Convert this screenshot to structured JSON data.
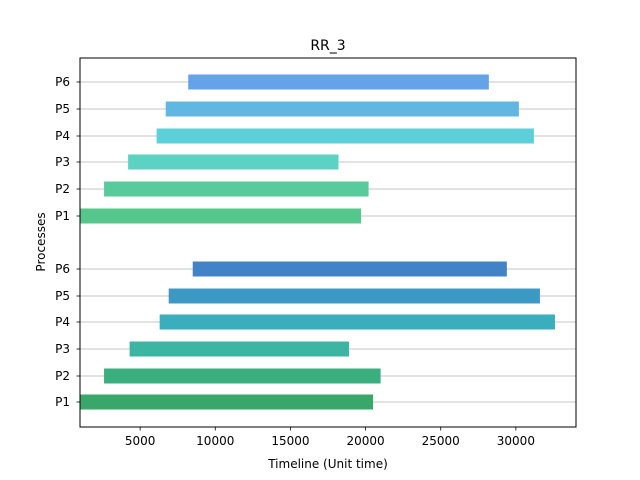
{
  "chart_data": {
    "type": "bar",
    "orientation": "horizontal-gantt",
    "title": "RR_3",
    "xlabel": "Timeline (Unit time)",
    "ylabel": "Processes",
    "xlim": [
      1000,
      34000
    ],
    "xticks": [
      5000,
      10000,
      15000,
      20000,
      25000,
      30000
    ],
    "xtick_labels": [
      "5000",
      "10000",
      "15000",
      "20000",
      "25000",
      "30000"
    ],
    "grid": "y",
    "legend": "none",
    "rows": [
      {
        "label": "P1",
        "start": 1000,
        "end": 20500,
        "color": "#3aa76a"
      },
      {
        "label": "P2",
        "start": 2600,
        "end": 21000,
        "color": "#3bae80"
      },
      {
        "label": "P3",
        "start": 4300,
        "end": 18900,
        "color": "#3cb5a2"
      },
      {
        "label": "P4",
        "start": 6300,
        "end": 32600,
        "color": "#3aaebd"
      },
      {
        "label": "P5",
        "start": 6900,
        "end": 31600,
        "color": "#3e98c4"
      },
      {
        "label": "P6",
        "start": 8500,
        "end": 29400,
        "color": "#4283c8"
      },
      {
        "label": "P1",
        "start": 1000,
        "end": 19700,
        "color": "#55c68c"
      },
      {
        "label": "P2",
        "start": 2600,
        "end": 20200,
        "color": "#58cb9d"
      },
      {
        "label": "P3",
        "start": 4200,
        "end": 18200,
        "color": "#5cd2c2"
      },
      {
        "label": "P4",
        "start": 6100,
        "end": 31200,
        "color": "#5dcfd8"
      },
      {
        "label": "P5",
        "start": 6700,
        "end": 30200,
        "color": "#60b8e2"
      },
      {
        "label": "P6",
        "start": 8200,
        "end": 28200,
        "color": "#64a3e8"
      }
    ]
  }
}
